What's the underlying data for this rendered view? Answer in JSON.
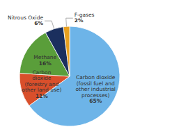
{
  "chart_data": {
    "type": "pie",
    "categories": [
      "Carbon dioxide\n(fossil fuel and\nother industrial\nprocesses)",
      "Carbon\ndioxide\n(forestry and\nother land use)",
      "Methane",
      "Nitrous Oxide",
      "F-gases"
    ],
    "values": [
      65,
      11,
      16,
      6,
      2
    ],
    "value_labels": [
      "65%",
      "11%",
      "16%",
      "6%",
      "2%"
    ],
    "data_labels": true,
    "colors": [
      "#6db4e8",
      "#d94f2b",
      "#5a9e3a",
      "#1b2f5e",
      "#e8a020"
    ]
  }
}
